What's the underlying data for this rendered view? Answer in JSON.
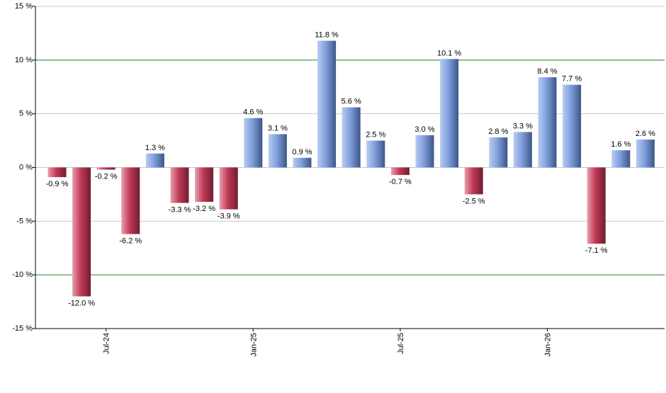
{
  "chart_data": {
    "type": "bar",
    "title": "",
    "xlabel": "",
    "ylabel": "",
    "ylim": [
      -15,
      15
    ],
    "yticks": [
      {
        "value": 15,
        "label": "15 %"
      },
      {
        "value": 10,
        "label": "10 %"
      },
      {
        "value": 5,
        "label": "5 %"
      },
      {
        "value": 0,
        "label": "0 %"
      },
      {
        "value": -5,
        "label": "-5 %"
      },
      {
        "value": -10,
        "label": "-10 %"
      },
      {
        "value": -15,
        "label": "-15 %"
      }
    ],
    "xtick_labels": [
      {
        "label": "Jul-24",
        "index": 2
      },
      {
        "label": "Jan-25",
        "index": 8
      },
      {
        "label": "Jul-25",
        "index": 14
      },
      {
        "label": "Jan-26",
        "index": 20
      }
    ],
    "grid": true,
    "bars": [
      {
        "value": -0.9,
        "label": "-0.9 %"
      },
      {
        "value": -12.0,
        "label": "-12.0 %"
      },
      {
        "value": -0.2,
        "label": "-0.2 %"
      },
      {
        "value": -6.2,
        "label": "-6.2 %"
      },
      {
        "value": 1.3,
        "label": "1.3 %"
      },
      {
        "value": -3.3,
        "label": "-3.3 %"
      },
      {
        "value": -3.2,
        "label": "-3.2 %"
      },
      {
        "value": -3.9,
        "label": "-3.9 %"
      },
      {
        "value": 4.6,
        "label": "4.6 %"
      },
      {
        "value": 3.1,
        "label": "3.1 %"
      },
      {
        "value": 0.9,
        "label": "0.9 %"
      },
      {
        "value": 11.8,
        "label": "11.8 %"
      },
      {
        "value": 5.6,
        "label": "5.6 %"
      },
      {
        "value": 2.5,
        "label": "2.5 %"
      },
      {
        "value": -0.7,
        "label": "-0.7 %"
      },
      {
        "value": 3.0,
        "label": "3.0 %"
      },
      {
        "value": 10.1,
        "label": "10.1 %"
      },
      {
        "value": -2.5,
        "label": "-2.5 %"
      },
      {
        "value": 2.8,
        "label": "2.8 %"
      },
      {
        "value": 3.3,
        "label": "3.3 %"
      },
      {
        "value": 8.4,
        "label": "8.4 %"
      },
      {
        "value": 7.7,
        "label": "7.7 %"
      },
      {
        "value": -7.1,
        "label": "-7.1 %"
      },
      {
        "value": 1.6,
        "label": "1.6 %"
      },
      {
        "value": 2.6,
        "label": "2.6 %"
      }
    ],
    "colors": {
      "positive": "#7f9fdc",
      "negative": "#c23a57",
      "grid": "#c8c8c8",
      "reference_line": "#2a7a2a",
      "axis": "#000000"
    }
  }
}
